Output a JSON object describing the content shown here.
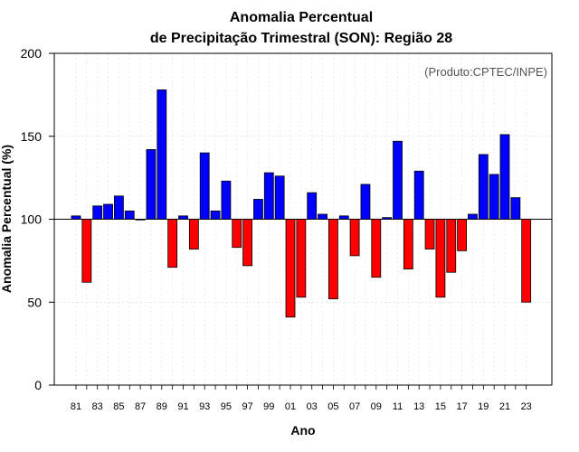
{
  "chart_data": {
    "type": "bar",
    "title_line1": "Anomalia Percentual",
    "title_line2": "de Precipitação Trimestral (SON): Região 28",
    "xlabel": "Ano",
    "ylabel": "Anomalia Percentual (%)",
    "credit": "(Produto:CPTEC/INPE)",
    "ylim": [
      0,
      200
    ],
    "yticks": [
      0,
      50,
      100,
      150,
      200
    ],
    "baseline": 100,
    "x_tick_labels": [
      "81",
      "83",
      "85",
      "87",
      "89",
      "91",
      "93",
      "95",
      "97",
      "99",
      "01",
      "03",
      "05",
      "07",
      "09",
      "11",
      "13",
      "15",
      "17",
      "19",
      "21",
      "23"
    ],
    "categories": [
      "1981",
      "1982",
      "1983",
      "1984",
      "1985",
      "1986",
      "1987",
      "1988",
      "1989",
      "1990",
      "1991",
      "1992",
      "1993",
      "1994",
      "1995",
      "1996",
      "1997",
      "1998",
      "1999",
      "2000",
      "2001",
      "2002",
      "2003",
      "2004",
      "2005",
      "2006",
      "2007",
      "2008",
      "2009",
      "2010",
      "2011",
      "2012",
      "2013",
      "2014",
      "2015",
      "2016",
      "2017",
      "2018",
      "2019",
      "2020",
      "2021",
      "2022",
      "2023"
    ],
    "values": [
      102,
      62,
      108,
      109,
      114,
      105,
      100,
      142,
      178,
      71,
      102,
      82,
      140,
      105,
      123,
      83,
      72,
      112,
      128,
      126,
      41,
      53,
      116,
      103,
      52,
      102,
      78,
      121,
      65,
      101,
      147,
      70,
      129,
      82,
      53,
      68,
      81,
      103,
      139,
      127,
      151,
      113,
      50
    ],
    "colors": {
      "above": "#0000ff",
      "below": "#ff0000"
    }
  }
}
